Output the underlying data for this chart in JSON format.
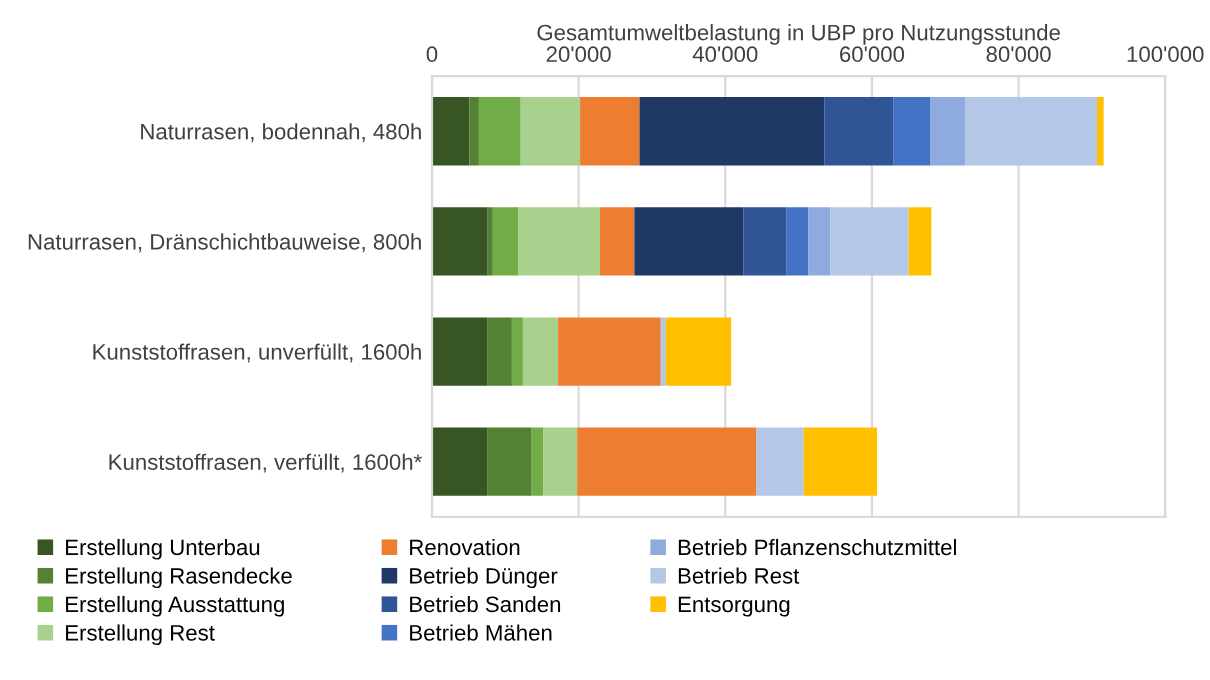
{
  "chart_data": {
    "type": "bar",
    "orientation": "horizontal",
    "stacked": true,
    "xlabel": "Gesamtumweltbelastung in UBP pro Nutzungsstunde",
    "categories": [
      "Naturrasen, bodennah, 480h",
      "Naturrasen, Dränschichtbauweise, 800h",
      "Kunststoffrasen, unverfüllt, 1600h",
      "Kunststoffrasen, verfüllt, 1600h*"
    ],
    "xlim": [
      0,
      100000
    ],
    "xticks": [
      0,
      {
        "value": 20000,
        "label": "20'000"
      },
      {
        "value": 40000,
        "label": "40'000"
      },
      {
        "value": 60000,
        "label": "60'000"
      },
      {
        "value": 80000,
        "label": "80'000"
      },
      {
        "value": 100000,
        "label": "100'000"
      }
    ],
    "grid": "x",
    "legend": "bottom",
    "series": [
      {
        "name": "Erstellung Unterbau",
        "color": "#375623",
        "values": [
          5100,
          7600,
          7600,
          7600
        ]
      },
      {
        "name": "Erstellung Rasendecke",
        "color": "#548235",
        "values": [
          1300,
          700,
          3300,
          6000
        ]
      },
      {
        "name": "Erstellung Ausstattung",
        "color": "#70ad47",
        "values": [
          5700,
          3500,
          1500,
          1600
        ]
      },
      {
        "name": "Erstellung Rest",
        "color": "#a9d18e",
        "values": [
          8100,
          11100,
          4800,
          4600
        ]
      },
      {
        "name": "Renovation",
        "color": "#ed7d31",
        "values": [
          8100,
          4700,
          14000,
          24400
        ]
      },
      {
        "name": "Betrieb Dünger",
        "color": "#203864",
        "values": [
          25200,
          14900,
          0,
          0
        ]
      },
      {
        "name": "Betrieb Sanden",
        "color": "#2f5597",
        "values": [
          9400,
          5800,
          0,
          0
        ]
      },
      {
        "name": "Betrieb Mähen",
        "color": "#4472c4",
        "values": [
          5100,
          3000,
          0,
          0
        ]
      },
      {
        "name": "Betrieb Pflanzenschutzmittel",
        "color": "#8faadc",
        "values": [
          4700,
          3000,
          0,
          0
        ]
      },
      {
        "name": "Betrieb Rest",
        "color": "#b4c7e7",
        "values": [
          18000,
          10700,
          700,
          6500
        ]
      },
      {
        "name": "Entsorgung",
        "color": "#ffc000",
        "values": [
          900,
          3100,
          8900,
          10000
        ]
      }
    ]
  }
}
